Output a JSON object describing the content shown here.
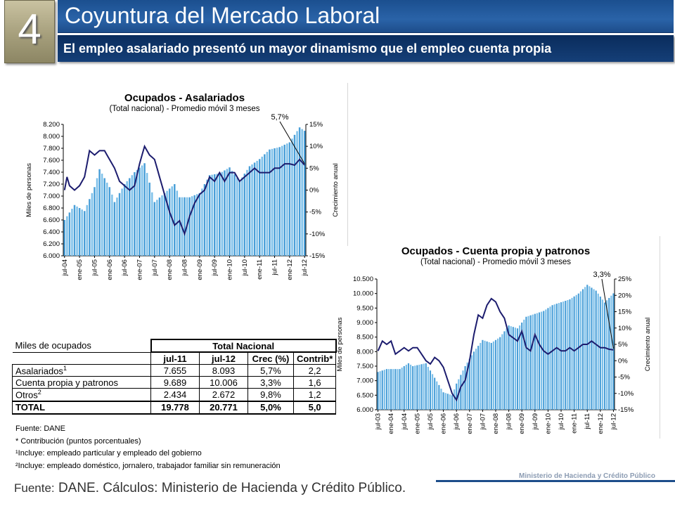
{
  "slide": {
    "number": "4",
    "title": "Coyuntura del Mercado Laboral",
    "subtitle": "El empleo asalariado presentó un mayor dinamismo que el empleo cuenta propia",
    "source_label": "Fuente:",
    "source_text": "DANE. Cálculos: Ministerio de Hacienda y Crédito Público.",
    "ministry": "Ministerio de Hacienda y Crédito Público"
  },
  "colors": {
    "title_bar": "#2a63a8",
    "subtitle_bar": "#0a2c5c",
    "bars": "#4a9fd8",
    "line": "#1c1c6e"
  },
  "chart_data": [
    {
      "type": "bar",
      "title": "Ocupados - Asalariados",
      "subtitle": "(Total nacional) - Promedio móvil 3 meses",
      "ylabel": "Miles de personas",
      "y2label": "Crecimiento anual",
      "annotation": "5,7%",
      "ylim": [
        6000,
        8200
      ],
      "y2lim": [
        -15,
        15
      ],
      "yticks": [
        "6.000",
        "6.200",
        "6.400",
        "6.600",
        "6.800",
        "7.000",
        "7.200",
        "7.400",
        "7.600",
        "7.800",
        "8.000",
        "8.200"
      ],
      "y2ticks": [
        "15%",
        "10%",
        "5%",
        "0%",
        "-5%",
        "-10%",
        "-15%"
      ],
      "xticks": [
        "jul-04",
        "ene-05",
        "jul-05",
        "ene-06",
        "jul-06",
        "ene-07",
        "jul-07",
        "ene-08",
        "jul-08",
        "ene-09",
        "jul-09",
        "ene-10",
        "jul-10",
        "ene-11",
        "jul-11",
        "ene-12",
        "jul-12"
      ],
      "bars_anchor_values": [
        [
          0,
          6600
        ],
        [
          4,
          6850
        ],
        [
          8,
          6750
        ],
        [
          12,
          7150
        ],
        [
          14,
          7450
        ],
        [
          18,
          7150
        ],
        [
          20,
          6900
        ],
        [
          24,
          7200
        ],
        [
          28,
          7400
        ],
        [
          32,
          7550
        ],
        [
          36,
          6900
        ],
        [
          40,
          7050
        ],
        [
          44,
          7200
        ],
        [
          46,
          6980
        ],
        [
          50,
          6980
        ],
        [
          54,
          7050
        ],
        [
          58,
          7350
        ],
        [
          62,
          7380
        ],
        [
          66,
          7480
        ],
        [
          70,
          7250
        ],
        [
          74,
          7500
        ],
        [
          78,
          7620
        ],
        [
          82,
          7780
        ],
        [
          86,
          7820
        ],
        [
          90,
          7900
        ],
        [
          94,
          8150
        ],
        [
          96,
          8093
        ]
      ],
      "line_anchor_values": [
        [
          0,
          0
        ],
        [
          1,
          3
        ],
        [
          2,
          1
        ],
        [
          4,
          0
        ],
        [
          6,
          1
        ],
        [
          8,
          3
        ],
        [
          10,
          9
        ],
        [
          12,
          8
        ],
        [
          14,
          9
        ],
        [
          16,
          9
        ],
        [
          18,
          7
        ],
        [
          20,
          5
        ],
        [
          22,
          2
        ],
        [
          24,
          1
        ],
        [
          26,
          0
        ],
        [
          28,
          1
        ],
        [
          30,
          6
        ],
        [
          32,
          10
        ],
        [
          34,
          8
        ],
        [
          36,
          7
        ],
        [
          38,
          3
        ],
        [
          40,
          -1
        ],
        [
          42,
          -5
        ],
        [
          44,
          -8
        ],
        [
          46,
          -7
        ],
        [
          48,
          -10
        ],
        [
          50,
          -6
        ],
        [
          52,
          -3
        ],
        [
          54,
          -1
        ],
        [
          56,
          0
        ],
        [
          58,
          3
        ],
        [
          60,
          2
        ],
        [
          62,
          4
        ],
        [
          64,
          2
        ],
        [
          66,
          4
        ],
        [
          68,
          4
        ],
        [
          70,
          2
        ],
        [
          72,
          3
        ],
        [
          74,
          4
        ],
        [
          76,
          5
        ],
        [
          78,
          4
        ],
        [
          80,
          4
        ],
        [
          82,
          4
        ],
        [
          84,
          5
        ],
        [
          86,
          5
        ],
        [
          88,
          6
        ],
        [
          90,
          6
        ],
        [
          92,
          5.7
        ],
        [
          94,
          7
        ],
        [
          96,
          5.7
        ]
      ]
    },
    {
      "type": "bar",
      "title": "Ocupados - Cuenta propia y patronos",
      "subtitle": "(Total nacional) - Promedio móvil 3 meses",
      "ylabel": "Miles de personas",
      "y2label": "Crecimiento anual",
      "annotation": "3,3%",
      "ylim": [
        6000,
        10500
      ],
      "y2lim": [
        -15,
        25
      ],
      "yticks": [
        "6.000",
        "6.500",
        "7.000",
        "7.500",
        "8.000",
        "8.500",
        "9.000",
        "9.500",
        "10.000",
        "10.500"
      ],
      "y2ticks": [
        "25%",
        "20%",
        "15%",
        "10%",
        "5%",
        "0%",
        "-5%",
        "-10%",
        "-15%"
      ],
      "xticks": [
        "jul-03",
        "ene-04",
        "jul-04",
        "ene-05",
        "jul-05",
        "ene-06",
        "jul-06",
        "ene-07",
        "jul-07",
        "ene-08",
        "jul-08",
        "ene-09",
        "jul-09",
        "ene-10",
        "jul-10",
        "ene-11",
        "jul-11",
        "ene-12",
        "jul-12"
      ],
      "bars_anchor_values": [
        [
          0,
          7300
        ],
        [
          4,
          7400
        ],
        [
          10,
          7400
        ],
        [
          14,
          7600
        ],
        [
          16,
          7500
        ],
        [
          22,
          7600
        ],
        [
          26,
          7100
        ],
        [
          30,
          6600
        ],
        [
          34,
          6500
        ],
        [
          36,
          6900
        ],
        [
          40,
          7500
        ],
        [
          44,
          8000
        ],
        [
          48,
          8400
        ],
        [
          52,
          8300
        ],
        [
          56,
          8500
        ],
        [
          60,
          8900
        ],
        [
          64,
          8800
        ],
        [
          68,
          9200
        ],
        [
          72,
          9300
        ],
        [
          76,
          9400
        ],
        [
          80,
          9600
        ],
        [
          84,
          9700
        ],
        [
          88,
          9800
        ],
        [
          92,
          10000
        ],
        [
          96,
          10300
        ],
        [
          100,
          10100
        ],
        [
          104,
          9689
        ],
        [
          108,
          10006
        ]
      ],
      "line_anchor_values": [
        [
          0,
          3
        ],
        [
          2,
          6
        ],
        [
          4,
          5
        ],
        [
          6,
          6
        ],
        [
          8,
          2
        ],
        [
          10,
          3
        ],
        [
          12,
          4
        ],
        [
          14,
          3
        ],
        [
          16,
          4
        ],
        [
          18,
          4
        ],
        [
          20,
          2
        ],
        [
          22,
          0
        ],
        [
          24,
          -1
        ],
        [
          26,
          1
        ],
        [
          28,
          0
        ],
        [
          30,
          -2
        ],
        [
          32,
          -6
        ],
        [
          34,
          -10
        ],
        [
          36,
          -12
        ],
        [
          38,
          -8
        ],
        [
          40,
          -6
        ],
        [
          42,
          0
        ],
        [
          44,
          8
        ],
        [
          46,
          14
        ],
        [
          48,
          13
        ],
        [
          50,
          17
        ],
        [
          52,
          19
        ],
        [
          54,
          18
        ],
        [
          56,
          15
        ],
        [
          58,
          13
        ],
        [
          60,
          8
        ],
        [
          62,
          7
        ],
        [
          64,
          6
        ],
        [
          66,
          9
        ],
        [
          68,
          4
        ],
        [
          70,
          3
        ],
        [
          72,
          8
        ],
        [
          74,
          5
        ],
        [
          76,
          3
        ],
        [
          78,
          2
        ],
        [
          80,
          3
        ],
        [
          82,
          4
        ],
        [
          84,
          3
        ],
        [
          86,
          3
        ],
        [
          88,
          4
        ],
        [
          90,
          3
        ],
        [
          92,
          4
        ],
        [
          94,
          5
        ],
        [
          96,
          5
        ],
        [
          98,
          6
        ],
        [
          100,
          5
        ],
        [
          102,
          4
        ],
        [
          104,
          4
        ],
        [
          106,
          3.5
        ],
        [
          108,
          3.3
        ]
      ]
    },
    {
      "type": "table",
      "header_left": "Miles de ocupados",
      "header_group": "Total Nacional",
      "columns": [
        "jul-11",
        "jul-12",
        "Crec (%)",
        "Contrib*"
      ],
      "rows": [
        {
          "label": "Asalariados",
          "sup": "1",
          "values": [
            "7.655",
            "8.093",
            "5,7%",
            "2,2"
          ]
        },
        {
          "label": "Cuenta propia y patronos",
          "sup": "",
          "values": [
            "9.689",
            "10.006",
            "3,3%",
            "1,6"
          ]
        },
        {
          "label": "Otros",
          "sup": "2",
          "values": [
            "2.434",
            "2.672",
            "9,8%",
            "1,2"
          ]
        },
        {
          "label": "TOTAL",
          "sup": "",
          "values": [
            "19.778",
            "20.771",
            "5,0%",
            "5,0"
          ]
        }
      ],
      "notes": [
        "Fuente: DANE",
        "* Contribución (puntos porcentuales)",
        "¹Incluye: empleado particular y empleado del gobierno",
        "²Incluye: empleado doméstico, jornalero, trabajador familiar sin remuneración"
      ]
    }
  ]
}
